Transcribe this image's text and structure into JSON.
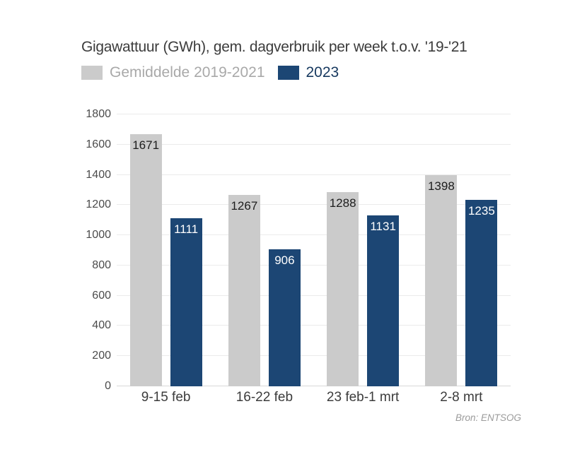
{
  "chart_data": {
    "type": "bar",
    "title": "Gigawattuur (GWh), gem. dagverbruik per week t.o.v. '19-'21",
    "categories": [
      "9-15 feb",
      "16-22 feb",
      "23 feb-1 mrt",
      "2-8 mrt"
    ],
    "series": [
      {
        "name": "Gemiddelde 2019-2021",
        "color": "#cbcbcb",
        "label_color": "#1d1d1d",
        "legend_text_color": "#a9a9a9",
        "values": [
          1671,
          1267,
          1288,
          1398
        ]
      },
      {
        "name": "2023",
        "color": "#1c4674",
        "label_color": "#ffffff",
        "legend_text_color": "#17395f",
        "values": [
          1111,
          906,
          1131,
          1235
        ]
      }
    ],
    "ylim": [
      0,
      1800
    ],
    "ytick_step": 200,
    "grid": true,
    "legend_position": "top-left",
    "value_labels": "inside-top",
    "source": "Bron: ENTSOG",
    "palette": {
      "background": "#ffffff",
      "gridline": "#ebebeb",
      "baseline": "#d8d8d8",
      "title_text": "#3c3c3c",
      "axis_tick_text": "#4b4b4b",
      "x_label_text": "#3c3c3c",
      "source_text": "#9b9b9b"
    }
  }
}
